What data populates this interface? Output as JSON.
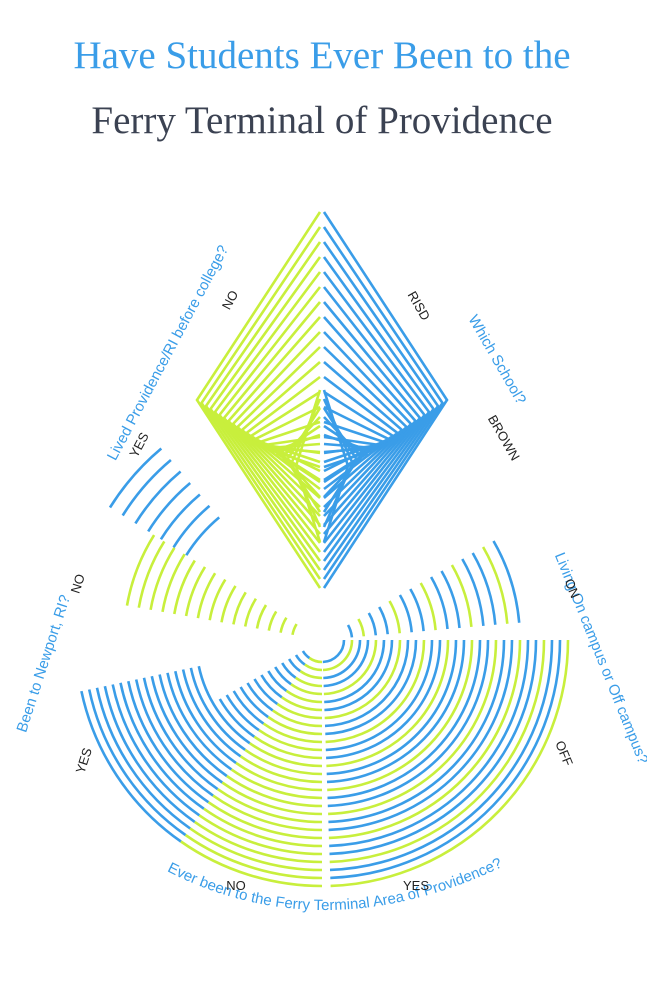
{
  "title": {
    "line1": "Have Students Ever Been to the",
    "line2": "Ferry Terminal of Providence"
  },
  "questions": [
    {
      "label": "Lived Providence/RI before college?",
      "answers": [
        "NO",
        "YES"
      ]
    },
    {
      "label": "Which School?",
      "answers": [
        "RISD",
        "BROWN"
      ]
    },
    {
      "label": "Living On campus or Off campus?",
      "answers": [
        "ON",
        "OFF"
      ]
    },
    {
      "label": "Ever been to the Ferry Terminal Area of Providence?",
      "answers": [
        "NO",
        "YES"
      ]
    },
    {
      "label": "Been to Newport, RI?",
      "answers": [
        "NO",
        "YES"
      ]
    }
  ]
}
